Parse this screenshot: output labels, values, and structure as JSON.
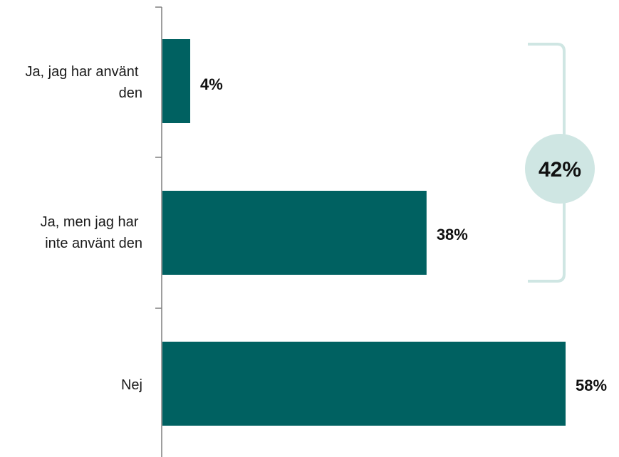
{
  "chart_data": {
    "type": "bar",
    "orientation": "horizontal",
    "categories": [
      "Ja, jag har använt den",
      "Ja, men jag har inte använt den",
      "Nej"
    ],
    "category_lines": [
      [
        "Ja, jag har använt",
        "den"
      ],
      [
        "Ja, men jag har",
        "inte använt den"
      ],
      [
        "Nej"
      ]
    ],
    "values": [
      4,
      38,
      58
    ],
    "value_labels": [
      "4%",
      "38%",
      "58%"
    ],
    "xlim": [
      0,
      58
    ],
    "grid": false,
    "bar_color": "#006161",
    "bracket": {
      "label": "42%",
      "spans_categories": [
        0,
        1
      ],
      "line_color": "#cfe6e3",
      "circle_color": "#cfe6e3"
    }
  }
}
